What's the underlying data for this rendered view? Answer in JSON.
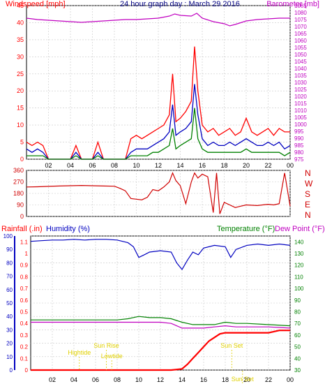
{
  "colors": {
    "wind_gust": "#ff0000",
    "wind_avg": "#0000c0",
    "wind_low": "#008000",
    "barometer": "#c000c0",
    "direction": "#d00000",
    "rainfall": "#ff0000",
    "humidity": "#0000c0",
    "temperature": "#008000",
    "dewpoint": "#c000c0",
    "sun_labels": "#e0d000",
    "axis": "#000000",
    "grid": "#c8c8c8"
  },
  "chart_data": [
    {
      "type": "line",
      "title": "24 hour graph day : March 29 2016",
      "left_axis_label": "Windspeed [mph]",
      "right_axis_label": "Barometer [mb]",
      "xlim": [
        0,
        24
      ],
      "x_ticks": [
        "02",
        "04",
        "06",
        "08",
        "10",
        "12",
        "14",
        "16",
        "18",
        "20",
        "22",
        "00"
      ],
      "wind_ylim": [
        0,
        45
      ],
      "wind_ticks": [
        0,
        5,
        10,
        15,
        20,
        25,
        30,
        35,
        40,
        45
      ],
      "baro_ylim": [
        975,
        1085
      ],
      "baro_ticks": [
        975,
        980,
        985,
        990,
        995,
        1000,
        1005,
        1010,
        1015,
        1020,
        1025,
        1030,
        1035,
        1040,
        1045,
        1050,
        1055,
        1060,
        1065,
        1070,
        1075,
        1080,
        1085
      ],
      "grid": true,
      "series": [
        {
          "axis": "left",
          "x": [
            0,
            0.5,
            1,
            1.5,
            2,
            3,
            4,
            4.5,
            5,
            6,
            6.5,
            7,
            8,
            9,
            9.5,
            10,
            10.5,
            11,
            11.5,
            12,
            12.5,
            13,
            13.3,
            13.6,
            14,
            14.5,
            15,
            15.3,
            15.6,
            16,
            16.5,
            17,
            17.5,
            18,
            18.5,
            19,
            19.5,
            20,
            20.5,
            21,
            21.5,
            22,
            22.5,
            23,
            23.5,
            24
          ],
          "values": [
            5,
            4,
            5,
            4,
            0,
            0,
            0,
            4,
            0,
            0,
            5,
            0,
            0,
            0,
            6,
            7,
            6,
            7,
            8,
            9,
            10,
            13,
            25,
            11,
            12,
            14,
            17,
            33,
            20,
            10,
            8,
            9,
            7,
            8,
            9,
            7,
            8,
            12,
            8,
            7,
            8,
            9,
            7,
            9,
            8,
            8
          ]
        },
        {
          "axis": "left",
          "x": [
            0,
            0.5,
            1,
            1.5,
            2,
            3,
            4,
            4.5,
            5,
            6,
            6.5,
            7,
            8,
            9,
            9.5,
            10,
            10.5,
            11,
            11.5,
            12,
            12.5,
            13,
            13.3,
            13.6,
            14,
            14.5,
            15,
            15.3,
            15.6,
            16,
            16.5,
            17,
            17.5,
            18,
            18.5,
            19,
            19.5,
            20,
            20.5,
            21,
            21.5,
            22,
            22.5,
            23,
            23.5,
            24
          ],
          "values": [
            3,
            2,
            3,
            2,
            0,
            0,
            0,
            2,
            0,
            0,
            2,
            0,
            0,
            0,
            2,
            3,
            3,
            3,
            4,
            5,
            6,
            8,
            16,
            7,
            8,
            9,
            11,
            22,
            13,
            6,
            4,
            5,
            4,
            4,
            5,
            4,
            5,
            6,
            5,
            4,
            4,
            5,
            4,
            5,
            3,
            4
          ]
        },
        {
          "axis": "left",
          "x": [
            0,
            0.5,
            1,
            1.5,
            2,
            3,
            4,
            4.5,
            5,
            6,
            6.5,
            7,
            8,
            9,
            9.5,
            10,
            10.5,
            11,
            11.5,
            12,
            12.5,
            13,
            13.3,
            13.6,
            14,
            14.5,
            15,
            15.3,
            15.6,
            16,
            16.5,
            17,
            17.5,
            18,
            18.5,
            19,
            19.5,
            20,
            20.5,
            21,
            21.5,
            22,
            22.5,
            23,
            23.5,
            24
          ],
          "values": [
            1,
            1,
            1,
            1,
            0,
            0,
            0,
            1,
            0,
            0,
            1,
            0,
            0,
            0,
            1,
            1,
            1,
            1,
            2,
            2,
            3,
            4,
            9,
            3,
            4,
            5,
            6,
            15,
            6,
            3,
            2,
            2,
            2,
            2,
            2,
            2,
            2,
            3,
            2,
            2,
            2,
            2,
            2,
            2,
            1,
            2
          ]
        },
        {
          "axis": "right",
          "x": [
            0,
            1,
            2,
            3,
            4,
            5,
            6,
            7,
            8,
            9,
            10,
            11,
            12,
            13,
            13.5,
            14,
            15,
            15.5,
            16,
            17,
            18,
            18.5,
            19,
            20,
            21,
            22,
            23,
            24
          ],
          "values": [
            1076,
            1075,
            1074.5,
            1074,
            1073.5,
            1073,
            1073.5,
            1074,
            1074.5,
            1075,
            1075,
            1075.5,
            1076,
            1077.5,
            1079,
            1078,
            1077.5,
            1079.5,
            1076,
            1073.5,
            1072,
            1070.5,
            1071.5,
            1074,
            1075,
            1075.5,
            1076,
            1076
          ]
        }
      ]
    },
    {
      "type": "line",
      "ylim": [
        0,
        360
      ],
      "y_ticks": [
        0,
        90,
        180,
        270,
        360
      ],
      "right_labels": [
        "N",
        "W",
        "S",
        "E",
        "N"
      ],
      "series": [
        {
          "x": [
            0,
            1,
            2,
            3,
            4,
            5,
            6,
            7,
            8,
            8.5,
            9,
            9.5,
            10,
            10.5,
            11,
            11.5,
            12,
            12.5,
            13,
            13.3,
            13.6,
            14,
            14.5,
            15,
            15.3,
            15.6,
            16,
            16.5,
            17,
            17.3,
            17.6,
            18,
            18.5,
            19,
            19.5,
            20,
            21,
            22,
            22.5,
            23,
            23.5,
            24
          ],
          "values": [
            230,
            232,
            235,
            238,
            240,
            242,
            240,
            238,
            236,
            220,
            200,
            140,
            135,
            130,
            150,
            210,
            200,
            230,
            270,
            340,
            280,
            240,
            100,
            270,
            340,
            300,
            330,
            310,
            30,
            340,
            20,
            110,
            90,
            70,
            80,
            90,
            85,
            95,
            90,
            100,
            340,
            80
          ]
        }
      ]
    },
    {
      "type": "line",
      "rain_label": "Rainfall (.in)",
      "humidity_label": "Humidity (%)",
      "temperature_label": "Temperature (°F)",
      "dewpoint_label": "Dew Point (°F)",
      "rain_ticks": [
        "0",
        "0.1",
        "0.2",
        "0.3",
        "0.4",
        "0.5",
        "0.6",
        "0.7",
        "0.8",
        "0.9",
        "1",
        "1.1"
      ],
      "humidity_ticks": [
        0,
        10,
        20,
        30,
        40,
        50,
        60,
        70,
        80,
        90,
        100
      ],
      "temp_ticks": [
        30,
        40,
        50,
        60,
        70,
        80,
        90,
        100,
        110,
        120,
        130,
        140
      ],
      "rain_ylim": [
        0,
        1.15
      ],
      "humidity_ylim": [
        0,
        100
      ],
      "temp_ylim": [
        30,
        145
      ],
      "annotations": [
        "Hightide",
        "Sun Rise",
        "Lowtide",
        "Sun Set",
        "Sun Set"
      ],
      "annotation_x": [
        4.5,
        7.0,
        7.5,
        18.6,
        19.6
      ],
      "series": [
        {
          "name": "Rainfall",
          "x": [
            0,
            13,
            14,
            14.5,
            15,
            15.5,
            16,
            16.5,
            17,
            17.5,
            18,
            20,
            22,
            22.5,
            23,
            23.5,
            24
          ],
          "values": [
            0,
            0,
            0.01,
            0.05,
            0.1,
            0.15,
            0.2,
            0.25,
            0.28,
            0.31,
            0.32,
            0.32,
            0.32,
            0.33,
            0.34,
            0.34,
            0.34
          ]
        },
        {
          "name": "Humidity",
          "x": [
            0,
            1,
            2,
            3,
            4,
            5,
            6,
            7,
            8,
            9,
            9.5,
            10,
            10.5,
            11,
            12,
            13,
            13.5,
            14,
            14.5,
            15,
            15.5,
            16,
            17,
            18,
            18.5,
            19,
            20,
            21,
            22,
            23,
            24
          ],
          "values": [
            96,
            96.5,
            97,
            97,
            97.5,
            97,
            97.5,
            97.5,
            97,
            95,
            92,
            84,
            86,
            88,
            89,
            88,
            80,
            75,
            82,
            88,
            86,
            91,
            93,
            92,
            84,
            90,
            93,
            94,
            93,
            94,
            93
          ]
        },
        {
          "name": "Temperature",
          "x": [
            0,
            2,
            4,
            6,
            8,
            9,
            10,
            11,
            12,
            13,
            14,
            15,
            16,
            17,
            18,
            19,
            20,
            22,
            24
          ],
          "values": [
            73,
            73,
            73,
            73,
            73,
            74,
            76,
            75,
            75,
            74,
            71,
            69,
            69,
            69,
            71,
            70,
            70,
            69,
            68
          ]
        },
        {
          "name": "Dew Point",
          "x": [
            0,
            2,
            4,
            6,
            8,
            9,
            10,
            11,
            12,
            13,
            14,
            15,
            16,
            17,
            18,
            19,
            20,
            22,
            24
          ],
          "values": [
            71,
            71,
            71,
            71,
            71,
            71,
            71,
            71,
            71,
            70,
            66,
            66,
            66,
            67,
            68,
            67,
            67,
            67,
            66
          ]
        }
      ]
    }
  ]
}
